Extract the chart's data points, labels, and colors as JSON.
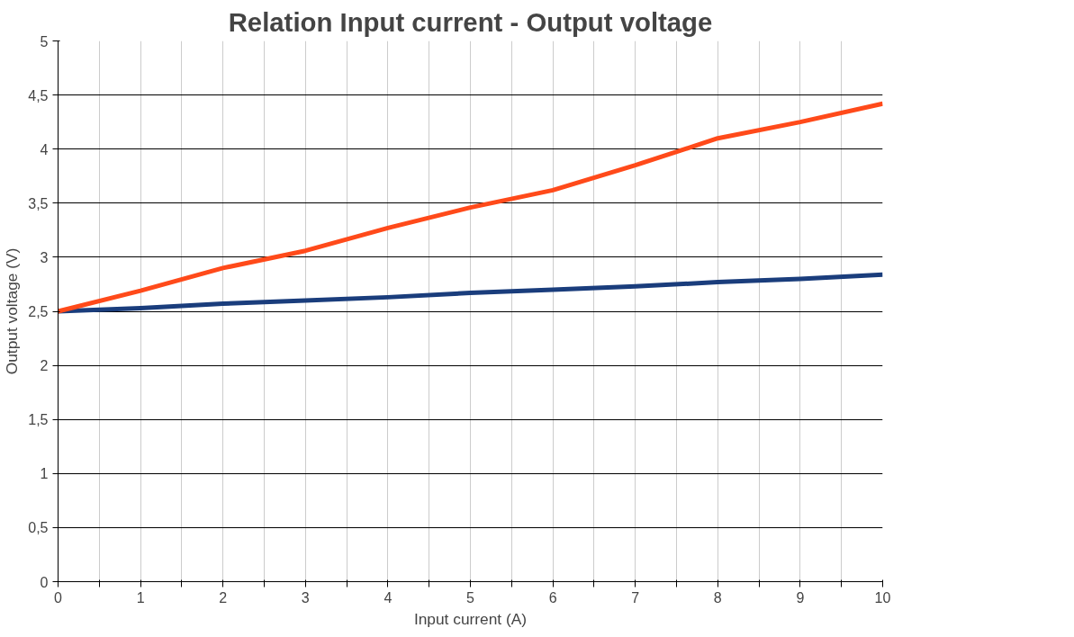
{
  "chart_data": {
    "type": "line",
    "title": "Relation Input current - Output voltage",
    "xlabel": "Input current (A)",
    "ylabel": "Output voltage (V)",
    "x": [
      0,
      1,
      2,
      3,
      4,
      5,
      6,
      7,
      8,
      9,
      10
    ],
    "series": [
      {
        "color": "#1a3d7c",
        "values": [
          2.5,
          2.53,
          2.57,
          2.6,
          2.63,
          2.67,
          2.7,
          2.73,
          2.77,
          2.8,
          2.84
        ]
      },
      {
        "color": "#ff4a1a",
        "values": [
          2.5,
          2.69,
          2.9,
          3.06,
          3.27,
          3.46,
          3.62,
          3.85,
          4.1,
          4.25,
          4.42
        ]
      }
    ],
    "xlim": [
      0,
      10
    ],
    "ylim": [
      0,
      5
    ],
    "xticks": [
      0,
      {
        "value": 0.5,
        "label": null
      },
      1,
      {
        "value": 1.5,
        "label": null
      },
      2,
      {
        "value": 2.5,
        "label": null
      },
      3,
      {
        "value": 3.5,
        "label": null
      },
      4,
      {
        "value": 4.5,
        "label": null
      },
      5,
      {
        "value": 5.5,
        "label": null
      },
      6,
      {
        "value": 6.5,
        "label": null
      },
      7,
      {
        "value": 7.5,
        "label": null
      },
      8,
      {
        "value": 8.5,
        "label": null
      },
      9,
      {
        "value": 9.5,
        "label": null
      },
      10
    ],
    "yticks": [
      0,
      {
        "value": 0.5,
        "label": "0,5"
      },
      1,
      {
        "value": 1.5,
        "label": "1,5"
      },
      2,
      {
        "value": 2.5,
        "label": "2,5"
      },
      3,
      {
        "value": 3.5,
        "label": "3,5"
      },
      4,
      {
        "value": 4.5,
        "label": "4,5"
      },
      5
    ],
    "grid": true,
    "line_style": "solid",
    "marker": "none"
  }
}
